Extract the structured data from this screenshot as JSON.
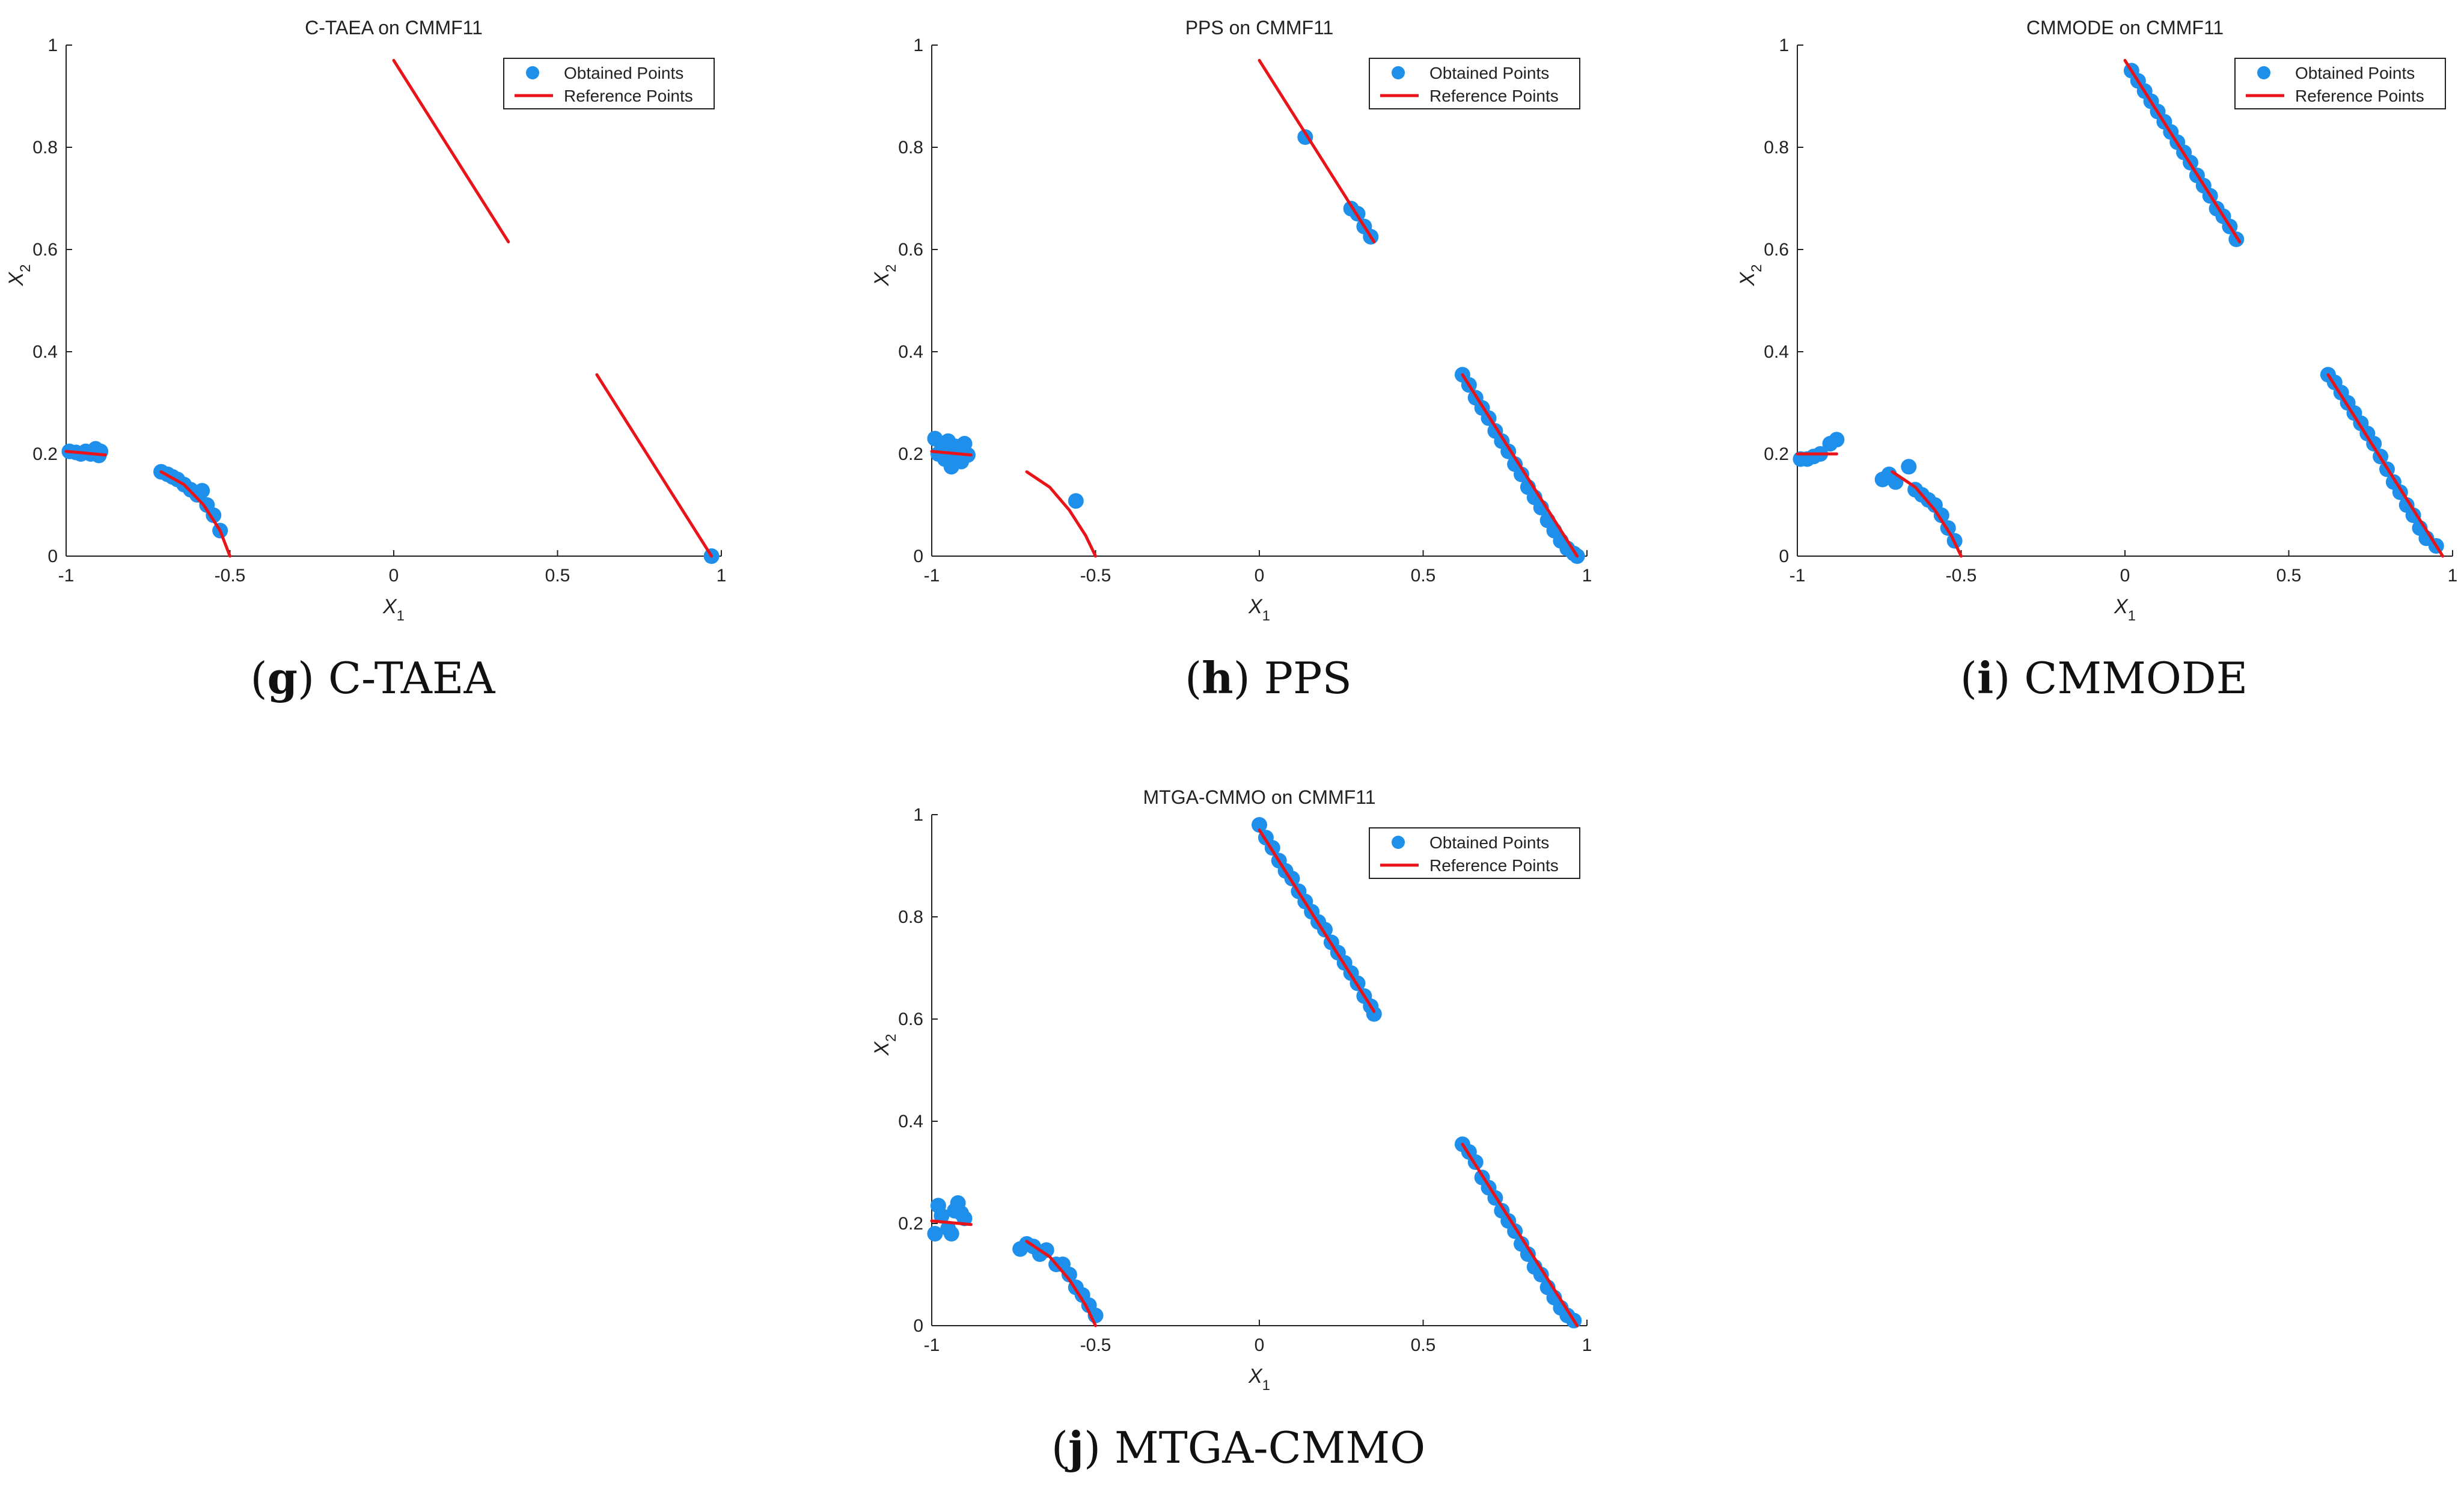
{
  "colors": {
    "points": "#1f8fec",
    "reference": "#e8141a",
    "axes": "#222222",
    "background": "#ffffff"
  },
  "chart_data": [
    {
      "type": "scatter",
      "title": "C-TAEA on CMMF11",
      "xlabel": "X",
      "xlabel_sub": "1",
      "ylabel": "X",
      "ylabel_sub": "2",
      "xlim": [
        -1,
        1
      ],
      "ylim": [
        0,
        1
      ],
      "xticks": [
        -1,
        -0.5,
        0,
        0.5,
        1
      ],
      "xtick_labels": [
        "-1",
        "-0.5",
        "0",
        "0.5",
        "1"
      ],
      "yticks": [
        0,
        0.2,
        0.4,
        0.6,
        0.8,
        1
      ],
      "ytick_labels": [
        "0",
        "0.2",
        "0.4",
        "0.6",
        "0.8",
        "1"
      ],
      "legend": [
        "Obtained Points",
        "Reference Points"
      ],
      "legend_position": "top-right",
      "caption_letter": "g",
      "caption_text": "C-TAEA",
      "reference_segments": [
        [
          [
            -1,
            0.205
          ],
          [
            -0.88,
            0.198
          ]
        ],
        [
          [
            -0.71,
            0.165
          ],
          [
            -0.64,
            0.14
          ],
          [
            -0.58,
            0.1
          ],
          [
            -0.53,
            0.05
          ],
          [
            -0.5,
            0
          ]
        ],
        [
          [
            0,
            0.97
          ],
          [
            0.35,
            0.615
          ]
        ],
        [
          [
            0.62,
            0.355
          ],
          [
            0.97,
            0
          ]
        ]
      ],
      "points": [
        [
          -0.99,
          0.205
        ],
        [
          -0.97,
          0.203
        ],
        [
          -0.955,
          0.2
        ],
        [
          -0.94,
          0.205
        ],
        [
          -0.925,
          0.2
        ],
        [
          -0.91,
          0.21
        ],
        [
          -0.9,
          0.197
        ],
        [
          -0.895,
          0.205
        ],
        [
          -0.71,
          0.165
        ],
        [
          -0.69,
          0.16
        ],
        [
          -0.675,
          0.155
        ],
        [
          -0.66,
          0.15
        ],
        [
          -0.64,
          0.14
        ],
        [
          -0.62,
          0.13
        ],
        [
          -0.6,
          0.12
        ],
        [
          -0.585,
          0.128
        ],
        [
          -0.57,
          0.1
        ],
        [
          -0.55,
          0.08
        ],
        [
          -0.53,
          0.05
        ],
        [
          0.97,
          0
        ]
      ]
    },
    {
      "type": "scatter",
      "title": "PPS on CMMF11",
      "xlabel": "X",
      "xlabel_sub": "1",
      "ylabel": "X",
      "ylabel_sub": "2",
      "xlim": [
        -1,
        1
      ],
      "ylim": [
        0,
        1
      ],
      "xticks": [
        -1,
        -0.5,
        0,
        0.5,
        1
      ],
      "xtick_labels": [
        "-1",
        "-0.5",
        "0",
        "0.5",
        "1"
      ],
      "yticks": [
        0,
        0.2,
        0.4,
        0.6,
        0.8,
        1
      ],
      "ytick_labels": [
        "0",
        "0.2",
        "0.4",
        "0.6",
        "0.8",
        "1"
      ],
      "legend": [
        "Obtained Points",
        "Reference Points"
      ],
      "legend_position": "top-right",
      "caption_letter": "h",
      "caption_text": "PPS",
      "reference_segments": [
        [
          [
            -1,
            0.205
          ],
          [
            -0.88,
            0.198
          ]
        ],
        [
          [
            -0.71,
            0.165
          ],
          [
            -0.64,
            0.135
          ],
          [
            -0.58,
            0.09
          ],
          [
            -0.53,
            0.04
          ],
          [
            -0.5,
            0
          ]
        ],
        [
          [
            0,
            0.97
          ],
          [
            0.35,
            0.615
          ]
        ],
        [
          [
            0.62,
            0.355
          ],
          [
            0.97,
            0
          ]
        ]
      ],
      "points": [
        [
          -0.99,
          0.23
        ],
        [
          -0.98,
          0.2
        ],
        [
          -0.97,
          0.22
        ],
        [
          -0.96,
          0.19
        ],
        [
          -0.95,
          0.225
        ],
        [
          -0.94,
          0.175
        ],
        [
          -0.93,
          0.2
        ],
        [
          -0.92,
          0.21
        ],
        [
          -0.91,
          0.185
        ],
        [
          -0.9,
          0.22
        ],
        [
          -0.89,
          0.198
        ],
        [
          -0.96,
          0.21
        ],
        [
          -0.93,
          0.215
        ],
        [
          -0.56,
          0.108
        ],
        [
          0.14,
          0.82
        ],
        [
          0.28,
          0.68
        ],
        [
          0.3,
          0.67
        ],
        [
          0.32,
          0.645
        ],
        [
          0.34,
          0.625
        ],
        [
          0.62,
          0.355
        ],
        [
          0.64,
          0.335
        ],
        [
          0.66,
          0.31
        ],
        [
          0.68,
          0.29
        ],
        [
          0.7,
          0.27
        ],
        [
          0.72,
          0.245
        ],
        [
          0.74,
          0.225
        ],
        [
          0.76,
          0.205
        ],
        [
          0.78,
          0.18
        ],
        [
          0.8,
          0.16
        ],
        [
          0.82,
          0.135
        ],
        [
          0.84,
          0.115
        ],
        [
          0.86,
          0.095
        ],
        [
          0.88,
          0.07
        ],
        [
          0.9,
          0.05
        ],
        [
          0.92,
          0.03
        ],
        [
          0.94,
          0.015
        ],
        [
          0.96,
          0.005
        ],
        [
          0.97,
          0
        ]
      ]
    },
    {
      "type": "scatter",
      "title": "CMMODE on CMMF11",
      "xlabel": "X",
      "xlabel_sub": "1",
      "ylabel": "X",
      "ylabel_sub": "2",
      "xlim": [
        -1,
        1
      ],
      "ylim": [
        0,
        1
      ],
      "xticks": [
        -1,
        -0.5,
        0,
        0.5,
        1
      ],
      "xtick_labels": [
        "-1",
        "-0.5",
        "0",
        "0.5",
        "1"
      ],
      "yticks": [
        0,
        0.2,
        0.4,
        0.6,
        0.8,
        1
      ],
      "ytick_labels": [
        "0",
        "0.2",
        "0.4",
        "0.6",
        "0.8",
        "1"
      ],
      "legend": [
        "Obtained Points",
        "Reference Points"
      ],
      "legend_position": "top-right",
      "caption_letter": "i",
      "caption_text": "CMMODE",
      "reference_segments": [
        [
          [
            -1,
            0.2
          ],
          [
            -0.88,
            0.2
          ]
        ],
        [
          [
            -0.71,
            0.165
          ],
          [
            -0.64,
            0.135
          ],
          [
            -0.58,
            0.09
          ],
          [
            -0.53,
            0.04
          ],
          [
            -0.5,
            0
          ]
        ],
        [
          [
            0,
            0.97
          ],
          [
            0.35,
            0.615
          ]
        ],
        [
          [
            0.62,
            0.355
          ],
          [
            0.97,
            0
          ]
        ]
      ],
      "points": [
        [
          -0.99,
          0.19
        ],
        [
          -0.97,
          0.19
        ],
        [
          -0.95,
          0.195
        ],
        [
          -0.93,
          0.2
        ],
        [
          -0.9,
          0.22
        ],
        [
          -0.88,
          0.228
        ],
        [
          -0.74,
          0.15
        ],
        [
          -0.72,
          0.16
        ],
        [
          -0.7,
          0.145
        ],
        [
          -0.66,
          0.175
        ],
        [
          -0.64,
          0.13
        ],
        [
          -0.62,
          0.12
        ],
        [
          -0.6,
          0.11
        ],
        [
          -0.58,
          0.1
        ],
        [
          -0.56,
          0.08
        ],
        [
          -0.54,
          0.055
        ],
        [
          -0.52,
          0.03
        ],
        [
          0.02,
          0.95
        ],
        [
          0.04,
          0.93
        ],
        [
          0.06,
          0.91
        ],
        [
          0.08,
          0.89
        ],
        [
          0.1,
          0.87
        ],
        [
          0.12,
          0.85
        ],
        [
          0.14,
          0.83
        ],
        [
          0.16,
          0.81
        ],
        [
          0.18,
          0.79
        ],
        [
          0.2,
          0.77
        ],
        [
          0.22,
          0.745
        ],
        [
          0.24,
          0.725
        ],
        [
          0.26,
          0.705
        ],
        [
          0.28,
          0.68
        ],
        [
          0.3,
          0.665
        ],
        [
          0.32,
          0.645
        ],
        [
          0.34,
          0.62
        ],
        [
          0.62,
          0.355
        ],
        [
          0.64,
          0.34
        ],
        [
          0.66,
          0.32
        ],
        [
          0.68,
          0.3
        ],
        [
          0.7,
          0.28
        ],
        [
          0.72,
          0.26
        ],
        [
          0.74,
          0.24
        ],
        [
          0.76,
          0.22
        ],
        [
          0.78,
          0.195
        ],
        [
          0.8,
          0.17
        ],
        [
          0.82,
          0.145
        ],
        [
          0.84,
          0.125
        ],
        [
          0.86,
          0.1
        ],
        [
          0.88,
          0.08
        ],
        [
          0.9,
          0.055
        ],
        [
          0.92,
          0.035
        ],
        [
          0.95,
          0.02
        ]
      ]
    },
    {
      "type": "scatter",
      "title": "MTGA-CMMO on CMMF11",
      "xlabel": "X",
      "xlabel_sub": "1",
      "ylabel": "X",
      "ylabel_sub": "2",
      "xlim": [
        -1,
        1
      ],
      "ylim": [
        0,
        1
      ],
      "xticks": [
        -1,
        -0.5,
        0,
        0.5,
        1
      ],
      "xtick_labels": [
        "-1",
        "-0.5",
        "0",
        "0.5",
        "1"
      ],
      "yticks": [
        0,
        0.2,
        0.4,
        0.6,
        0.8,
        1
      ],
      "ytick_labels": [
        "0",
        "0.2",
        "0.4",
        "0.6",
        "0.8",
        "1"
      ],
      "legend": [
        "Obtained Points",
        "Reference Points"
      ],
      "legend_position": "top-right",
      "caption_letter": "j",
      "caption_text": "MTGA-CMMO",
      "reference_segments": [
        [
          [
            -1,
            0.205
          ],
          [
            -0.88,
            0.198
          ]
        ],
        [
          [
            -0.71,
            0.165
          ],
          [
            -0.64,
            0.135
          ],
          [
            -0.58,
            0.09
          ],
          [
            -0.53,
            0.04
          ],
          [
            -0.5,
            0
          ]
        ],
        [
          [
            0,
            0.97
          ],
          [
            0.35,
            0.615
          ]
        ],
        [
          [
            0.62,
            0.355
          ],
          [
            0.97,
            0
          ]
        ]
      ],
      "points": [
        [
          -0.99,
          0.18
        ],
        [
          -0.98,
          0.235
        ],
        [
          -0.97,
          0.215
        ],
        [
          -0.95,
          0.19
        ],
        [
          -0.94,
          0.18
        ],
        [
          -0.93,
          0.225
        ],
        [
          -0.92,
          0.24
        ],
        [
          -0.91,
          0.22
        ],
        [
          -0.9,
          0.21
        ],
        [
          -0.73,
          0.15
        ],
        [
          -0.71,
          0.16
        ],
        [
          -0.69,
          0.155
        ],
        [
          -0.67,
          0.14
        ],
        [
          -0.65,
          0.148
        ],
        [
          -0.62,
          0.12
        ],
        [
          -0.6,
          0.12
        ],
        [
          -0.58,
          0.1
        ],
        [
          -0.56,
          0.075
        ],
        [
          -0.54,
          0.06
        ],
        [
          -0.52,
          0.04
        ],
        [
          -0.5,
          0.02
        ],
        [
          0,
          0.98
        ],
        [
          0.02,
          0.955
        ],
        [
          0.04,
          0.935
        ],
        [
          0.06,
          0.91
        ],
        [
          0.08,
          0.89
        ],
        [
          0.1,
          0.875
        ],
        [
          0.12,
          0.85
        ],
        [
          0.14,
          0.83
        ],
        [
          0.16,
          0.81
        ],
        [
          0.18,
          0.79
        ],
        [
          0.2,
          0.775
        ],
        [
          0.22,
          0.75
        ],
        [
          0.24,
          0.73
        ],
        [
          0.26,
          0.71
        ],
        [
          0.28,
          0.69
        ],
        [
          0.3,
          0.67
        ],
        [
          0.32,
          0.645
        ],
        [
          0.34,
          0.625
        ],
        [
          0.35,
          0.61
        ],
        [
          0.62,
          0.355
        ],
        [
          0.64,
          0.34
        ],
        [
          0.66,
          0.32
        ],
        [
          0.68,
          0.29
        ],
        [
          0.7,
          0.27
        ],
        [
          0.72,
          0.25
        ],
        [
          0.74,
          0.225
        ],
        [
          0.76,
          0.205
        ],
        [
          0.78,
          0.185
        ],
        [
          0.8,
          0.16
        ],
        [
          0.82,
          0.14
        ],
        [
          0.84,
          0.115
        ],
        [
          0.86,
          0.1
        ],
        [
          0.88,
          0.075
        ],
        [
          0.9,
          0.055
        ],
        [
          0.92,
          0.035
        ],
        [
          0.94,
          0.02
        ],
        [
          0.96,
          0.01
        ]
      ]
    }
  ]
}
